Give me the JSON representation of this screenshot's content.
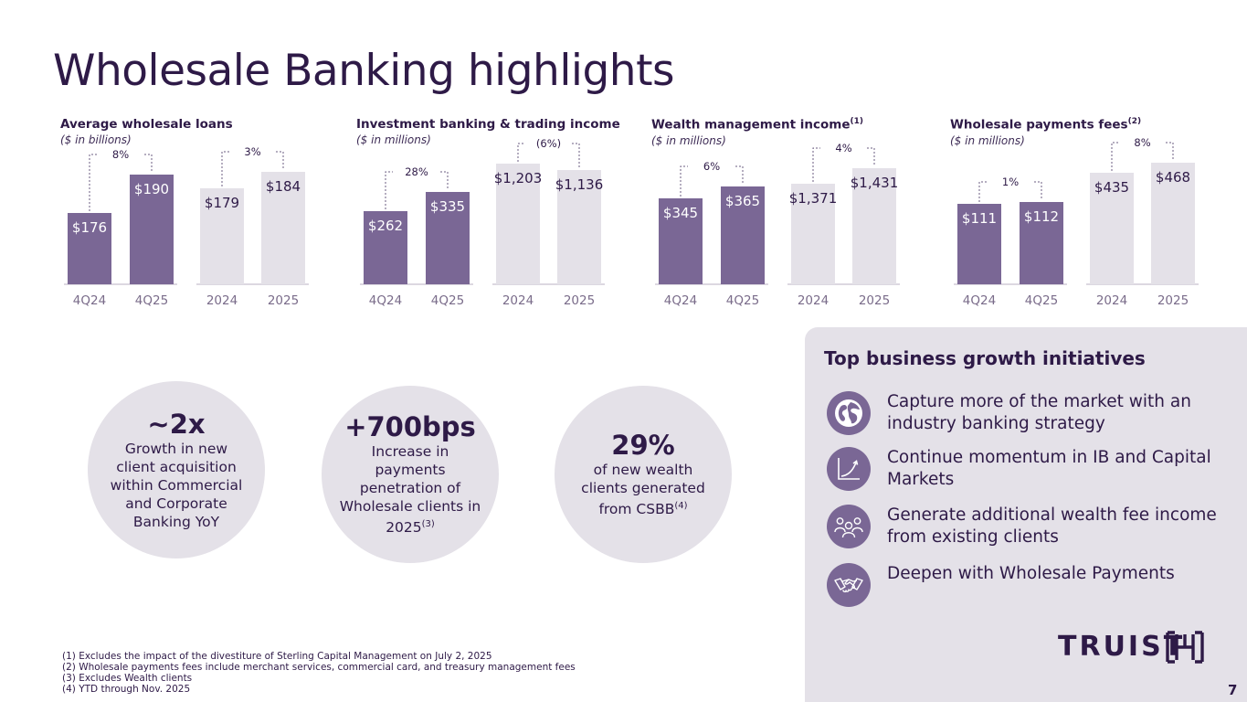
{
  "title": "Wholesale Banking highlights",
  "colors": {
    "quarter_bar": "#7a6795",
    "annual_bar": "#e4e1e8",
    "text": "#2e1a47",
    "axis_label": "#7a6c8a"
  },
  "chart_data": [
    {
      "type": "bar",
      "title": "Average wholesale loans",
      "subtitle": "($ in billions)",
      "categories": [
        "4Q24",
        "4Q25",
        "2024",
        "2025"
      ],
      "values": [
        176,
        190,
        179,
        184
      ],
      "labels": [
        "$176",
        "$190",
        "$179",
        "$184"
      ],
      "groups": [
        {
          "change": "8%"
        },
        {
          "change": "3%"
        }
      ]
    },
    {
      "type": "bar",
      "title": "Investment banking & trading income",
      "subtitle": "($ in millions)",
      "categories": [
        "4Q24",
        "4Q25",
        "2024",
        "2025"
      ],
      "values": [
        262,
        335,
        1203,
        1136
      ],
      "labels": [
        "$262",
        "$335",
        "$1,203",
        "$1,136"
      ],
      "groups": [
        {
          "change": "28%"
        },
        {
          "change": "(6%)"
        }
      ]
    },
    {
      "type": "bar",
      "title": "Wealth management income",
      "footnote_ref": "(1)",
      "subtitle": "($ in millions)",
      "categories": [
        "4Q24",
        "4Q25",
        "2024",
        "2025"
      ],
      "values": [
        345,
        365,
        1371,
        1431
      ],
      "labels": [
        "$345",
        "$365",
        "$1,371",
        "$1,431"
      ],
      "groups": [
        {
          "change": "6%"
        },
        {
          "change": "4%"
        }
      ]
    },
    {
      "type": "bar",
      "title": "Wholesale payments fees",
      "footnote_ref": "(2)",
      "subtitle": "($ in millions)",
      "categories": [
        "4Q24",
        "4Q25",
        "2024",
        "2025"
      ],
      "values": [
        111,
        112,
        435,
        468
      ],
      "labels": [
        "$111",
        "$112",
        "$435",
        "$468"
      ],
      "groups": [
        {
          "change": "1%"
        },
        {
          "change": "8%"
        }
      ]
    }
  ],
  "stats": [
    {
      "value": "~2x",
      "text": "Growth in new client acquisition within Commercial and Corporate Banking YoY",
      "ref": ""
    },
    {
      "value": "+700bps",
      "text": "Increase in payments penetration of Wholesale clients in 2025",
      "ref": "(3)"
    },
    {
      "value": "29%",
      "text": "of new wealth clients generated from CSBB",
      "ref": "(4)"
    }
  ],
  "initiatives": {
    "title": "Top business growth initiatives",
    "items": [
      {
        "icon": "globe-icon",
        "label": "Capture more of the market with an industry banking strategy"
      },
      {
        "icon": "growth-chart-icon",
        "label": "Continue momentum in IB and Capital Markets"
      },
      {
        "icon": "people-group-icon",
        "label": "Generate additional wealth fee income from existing clients"
      },
      {
        "icon": "handshake-icon",
        "label": "Deepen with Wholesale Payments"
      }
    ]
  },
  "logo": {
    "text": "TRUIST",
    "icon": "truist-mark-icon"
  },
  "footnotes": [
    "(1)  Excludes the impact of the divestiture of Sterling Capital Management on July 2, 2025",
    "(2)  Wholesale payments fees include merchant services, commercial card, and treasury management fees",
    "(3)  Excludes Wealth clients",
    "(4)  YTD through Nov. 2025"
  ],
  "page_number": "7"
}
